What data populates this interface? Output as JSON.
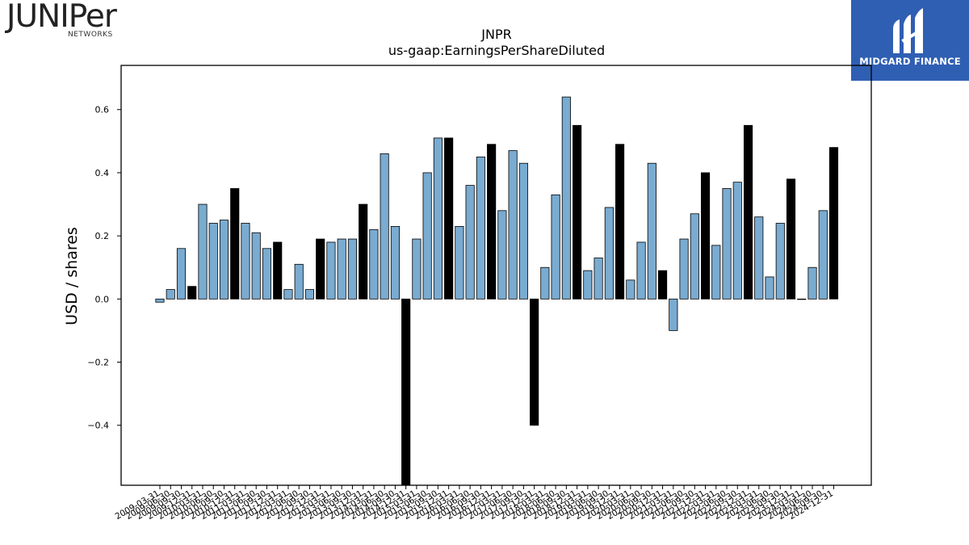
{
  "logos": {
    "left_name": "JUNIPer",
    "left_sub": "NETWORKS",
    "right_name": "MIDGARD FINANCE",
    "right_bg": "#2f5fb3"
  },
  "chart_data": {
    "type": "bar",
    "title": "JNPR",
    "subtitle": "us-gaap:EarningsPerShareDiluted",
    "xlabel": "",
    "ylabel": "USD / shares",
    "ylim": [
      -0.59,
      0.74
    ],
    "yticks": [
      -0.4,
      -0.2,
      0.0,
      0.2,
      0.4,
      0.6
    ],
    "ytick_labels": [
      "−0.4",
      "−0.2",
      "0.0",
      "0.2",
      "0.4",
      "0.6"
    ],
    "grid": false,
    "colors": {
      "quarter": "#7aabd0",
      "annual": "#000000",
      "edge": "#000000"
    },
    "categories": [
      "2009-03-31",
      "2009-06-30",
      "2009-09-30",
      "2009-12-31",
      "2010-03-31",
      "2010-06-30",
      "2010-09-30",
      "2010-12-31",
      "2011-03-31",
      "2011-06-30",
      "2011-09-30",
      "2011-12-31",
      "2012-03-31",
      "2012-06-30",
      "2012-09-30",
      "2012-12-31",
      "2013-03-31",
      "2013-06-30",
      "2013-09-30",
      "2013-12-31",
      "2014-03-31",
      "2014-06-30",
      "2014-09-30",
      "2014-12-31",
      "2015-03-31",
      "2015-06-30",
      "2015-09-30",
      "2015-12-31",
      "2016-03-31",
      "2016-06-30",
      "2016-09-30",
      "2016-12-31",
      "2017-03-31",
      "2017-06-30",
      "2017-09-30",
      "2017-12-31",
      "2018-03-31",
      "2018-06-30",
      "2018-09-30",
      "2018-12-31",
      "2019-03-31",
      "2019-06-30",
      "2019-09-30",
      "2019-12-31",
      "2020-03-31",
      "2020-06-30",
      "2020-09-30",
      "2020-12-31",
      "2021-03-31",
      "2021-06-30",
      "2021-09-30",
      "2021-12-31",
      "2022-03-31",
      "2022-06-30",
      "2022-09-30",
      "2022-12-31",
      "2023-03-31",
      "2023-06-30",
      "2023-09-30",
      "2023-12-31",
      "2024-03-31",
      "2024-06-30",
      "2024-09-30",
      "2024-12-31"
    ],
    "values": [
      -0.01,
      0.03,
      0.16,
      0.04,
      0.3,
      0.24,
      0.25,
      0.35,
      0.24,
      0.21,
      0.16,
      0.18,
      0.03,
      0.11,
      0.03,
      0.19,
      0.18,
      0.19,
      0.19,
      0.3,
      0.22,
      0.46,
      0.23,
      -0.59,
      0.19,
      0.4,
      0.51,
      0.51,
      0.23,
      0.36,
      0.45,
      0.49,
      0.28,
      0.47,
      0.43,
      -0.4,
      0.1,
      0.33,
      0.64,
      0.55,
      0.09,
      0.13,
      0.29,
      0.49,
      0.06,
      0.18,
      0.43,
      0.09,
      -0.1,
      0.19,
      0.27,
      0.4,
      0.17,
      0.35,
      0.37,
      0.55,
      0.26,
      0.07,
      0.24,
      0.38,
      0.0,
      0.1,
      0.28,
      0.48
    ],
    "annual": [
      false,
      false,
      false,
      true,
      false,
      false,
      false,
      true,
      false,
      false,
      false,
      true,
      false,
      false,
      false,
      true,
      false,
      false,
      false,
      true,
      false,
      false,
      false,
      true,
      false,
      false,
      false,
      true,
      false,
      false,
      false,
      true,
      false,
      false,
      false,
      true,
      false,
      false,
      false,
      true,
      false,
      false,
      false,
      true,
      false,
      false,
      false,
      true,
      false,
      false,
      false,
      true,
      false,
      false,
      false,
      true,
      false,
      false,
      false,
      true,
      false,
      false,
      false,
      true
    ]
  }
}
